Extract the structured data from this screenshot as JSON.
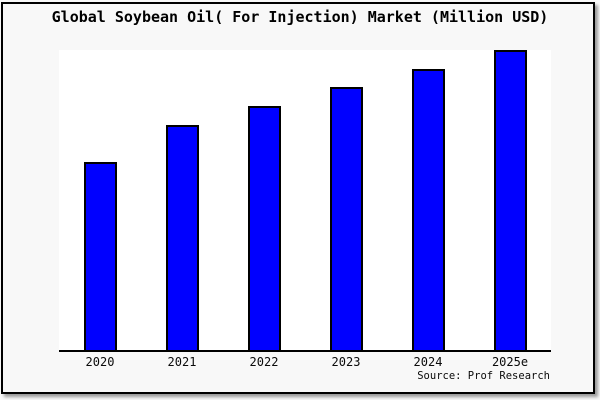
{
  "window": {
    "background_color": "#f8f8f8",
    "frame_border_color": "#000000"
  },
  "chart_data": {
    "type": "bar",
    "title": "Global Soybean Oil( For Injection) Market (Million USD)",
    "categories": [
      "2020",
      "2021",
      "2022",
      "2023",
      "2024",
      "2025e"
    ],
    "values": [
      188,
      225,
      244,
      263,
      281,
      300
    ],
    "ylim": [
      0,
      300
    ],
    "xlabel": "",
    "ylabel": "",
    "grid": false,
    "legend_position": "none",
    "bar_color": "#0000ff",
    "bar_border_color": "#000000",
    "plot_background": "#ffffff",
    "axis_color": "#000000",
    "source": "Source: Prof Research"
  }
}
